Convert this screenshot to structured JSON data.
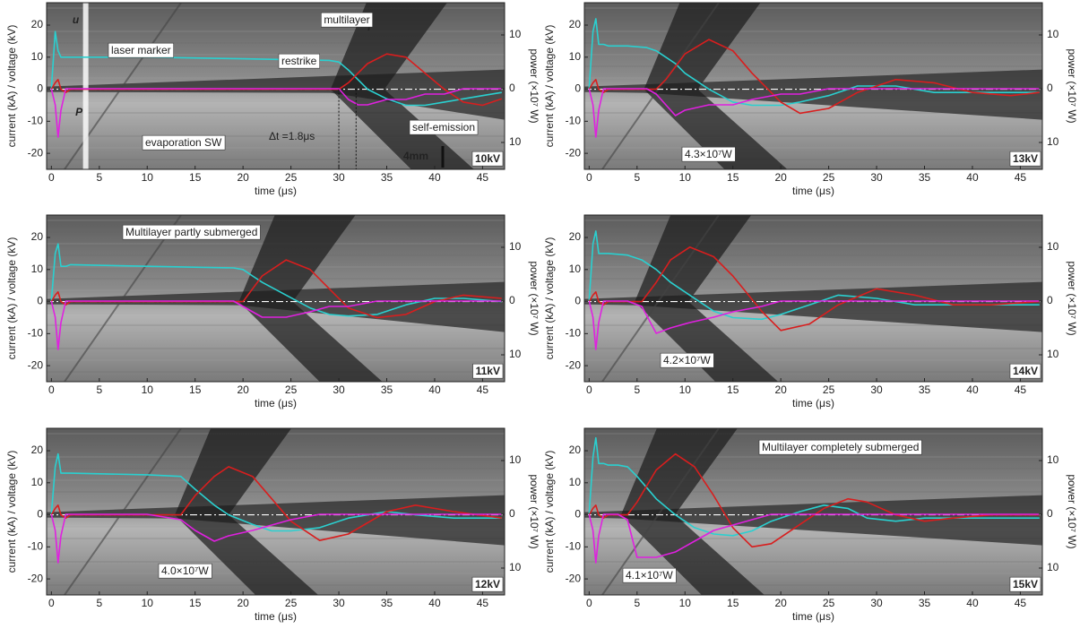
{
  "chart_data": [
    {
      "type": "line",
      "panel_label": "10kV",
      "xlabel": "time (μs)",
      "ylabel": "current (kA) / voltage (kV)",
      "y2label": "power (×10⁷ W)",
      "xlim": [
        -0.5,
        47.3
      ],
      "xticks": [
        0,
        5,
        10,
        15,
        20,
        25,
        30,
        35,
        40,
        45
      ],
      "ylim": [
        -25,
        27
      ],
      "yticks": [
        -20,
        -10,
        0,
        10,
        20
      ],
      "y2lim": [
        -15,
        16
      ],
      "y2ticks": [
        {
          "value": -10,
          "label": "10"
        },
        0,
        10
      ],
      "x": [
        0,
        0.4,
        0.7,
        1,
        1.5,
        2,
        10,
        20,
        29,
        30,
        31,
        32,
        33,
        35,
        37,
        39,
        41,
        43,
        45,
        47
      ],
      "series": [
        {
          "name": "u",
          "color": "#2ad0d0",
          "values": [
            0,
            18,
            12,
            10,
            10,
            10,
            10,
            9.5,
            9,
            8.5,
            6,
            3,
            0,
            -3,
            -5,
            -5,
            -4,
            -3,
            -2,
            -1
          ]
        },
        {
          "name": "I",
          "color": "#d81e1e",
          "values": [
            0,
            2,
            3,
            0,
            -1,
            0,
            0,
            0,
            0,
            0,
            2,
            5,
            8,
            11,
            10,
            5,
            0,
            -4,
            -5,
            -3
          ]
        },
        {
          "name": "P",
          "color": "#e020e0",
          "axis": "y2",
          "values": [
            0,
            -3,
            -9,
            -4,
            0,
            0,
            0,
            0,
            0,
            0,
            -2,
            -3,
            -3,
            -2,
            -2,
            -1,
            -1,
            0,
            0,
            0
          ]
        }
      ],
      "annotations": [
        "multilayer",
        "laser marker",
        "restrike",
        "self-emission",
        "evaporation SW",
        "Δt =1.8μs",
        "4mm"
      ]
    },
    {
      "type": "line",
      "panel_label": "13kV",
      "xlabel": "time (μs)",
      "ylabel": "current (kA) / voltage (kV)",
      "y2label": "power (×10⁷ W)",
      "xlim": [
        -0.5,
        47.3
      ],
      "xticks": [
        0,
        5,
        10,
        15,
        20,
        25,
        30,
        35,
        40,
        45
      ],
      "ylim": [
        -25,
        27
      ],
      "yticks": [
        -20,
        -10,
        0,
        10,
        20
      ],
      "y2lim": [
        -15,
        16
      ],
      "y2ticks": [
        {
          "value": -10,
          "label": "10"
        },
        0,
        10
      ],
      "x": [
        0,
        0.4,
        0.7,
        1,
        1.5,
        2,
        4,
        6,
        7,
        8,
        9,
        10,
        12.5,
        15,
        17,
        20,
        22,
        25,
        28,
        32,
        36,
        40,
        44,
        47
      ],
      "series": [
        {
          "color": "#2ad0d0",
          "values": [
            0,
            18,
            22,
            14,
            14,
            13.5,
            13.5,
            13,
            12,
            10,
            8,
            5,
            0,
            -4,
            -5,
            -5,
            -4,
            -2,
            1,
            1,
            -1,
            -1,
            -1,
            -1
          ]
        },
        {
          "color": "#d81e1e",
          "values": [
            0,
            2,
            3,
            0,
            -1,
            0,
            0,
            0,
            0,
            3,
            7,
            11,
            15.5,
            12,
            5,
            -4,
            -7.5,
            -6,
            -1,
            3,
            2,
            -1,
            -2,
            -1
          ]
        },
        {
          "color": "#e020e0",
          "axis": "y2",
          "values": [
            0,
            -3,
            -9,
            -4,
            0,
            0,
            0,
            0,
            -1,
            -3,
            -5,
            -4,
            -3,
            -3,
            -2,
            -1,
            -1,
            0,
            0,
            0,
            0,
            0,
            0,
            0
          ]
        }
      ],
      "annotations": [
        "4.3×10⁷W"
      ]
    },
    {
      "type": "line",
      "panel_label": "11kV",
      "xlabel": "time (μs)",
      "ylabel": "current (kA) / voltage (kV)",
      "y2label": "power (×10⁷ W)",
      "xlim": [
        -0.5,
        47.3
      ],
      "xticks": [
        0,
        5,
        10,
        15,
        20,
        25,
        30,
        35,
        40,
        45
      ],
      "ylim": [
        -25,
        27
      ],
      "yticks": [
        -20,
        -10,
        0,
        10,
        20
      ],
      "y2lim": [
        -15,
        16
      ],
      "y2ticks": [
        {
          "value": -10,
          "label": "10"
        },
        0,
        10
      ],
      "x": [
        0,
        0.4,
        0.7,
        1,
        1.5,
        2,
        10,
        19,
        20,
        21,
        22,
        24.5,
        27,
        29,
        31,
        34,
        37,
        40,
        43,
        47
      ],
      "series": [
        {
          "color": "#2ad0d0",
          "values": [
            0,
            15,
            18,
            11,
            11,
            11.5,
            11,
            10.5,
            10,
            8,
            6,
            2,
            -2,
            -4,
            -4.5,
            -4,
            -1,
            1,
            1,
            0
          ]
        },
        {
          "color": "#d81e1e",
          "values": [
            0,
            2,
            3,
            0,
            -1,
            0,
            0,
            0,
            0,
            4,
            8,
            13,
            10,
            4,
            -2,
            -5,
            -4,
            0,
            2,
            1
          ]
        },
        {
          "color": "#e020e0",
          "axis": "y2",
          "values": [
            0,
            -3,
            -9,
            -4,
            0,
            0,
            0,
            0,
            -1,
            -2,
            -3,
            -3,
            -2,
            -1,
            -1,
            0,
            0,
            0,
            0,
            0
          ]
        }
      ],
      "annotations": [
        "Multilayer partly submerged"
      ]
    },
    {
      "type": "line",
      "panel_label": "14kV",
      "xlabel": "time (μs)",
      "ylabel": "current (kA) / voltage (kV)",
      "y2label": "power (×10⁷ W)",
      "xlim": [
        -0.5,
        47.3
      ],
      "xticks": [
        0,
        5,
        10,
        15,
        20,
        25,
        30,
        35,
        40,
        45
      ],
      "ylim": [
        -25,
        27
      ],
      "yticks": [
        -20,
        -10,
        0,
        10,
        20
      ],
      "y2lim": [
        -15,
        16
      ],
      "y2ticks": [
        {
          "value": -10,
          "label": "10"
        },
        0,
        10
      ],
      "x": [
        0,
        0.4,
        0.7,
        1,
        1.5,
        2,
        4,
        5.5,
        7,
        8.5,
        10.5,
        13,
        15,
        18,
        20,
        23,
        26,
        30,
        34,
        38,
        42,
        47
      ],
      "series": [
        {
          "color": "#2ad0d0",
          "values": [
            0,
            18,
            22,
            15,
            15,
            15,
            14.5,
            13,
            10,
            6,
            2,
            -3,
            -5,
            -5.5,
            -4,
            -1,
            2,
            1,
            -1,
            -1,
            -1,
            -1
          ]
        },
        {
          "color": "#d81e1e",
          "values": [
            0,
            2,
            3,
            0,
            -1,
            0,
            0,
            0,
            6,
            13,
            17,
            14,
            8,
            -3,
            -9,
            -7,
            -1,
            4,
            2,
            -1,
            -1,
            0
          ]
        },
        {
          "color": "#e020e0",
          "axis": "y2",
          "values": [
            0,
            -3,
            -9,
            -4,
            0,
            0,
            0,
            -1,
            -6,
            -5,
            -4,
            -3,
            -2,
            -1,
            0,
            0,
            0,
            0,
            0,
            0,
            0,
            0
          ]
        }
      ],
      "annotations": [
        "4.2×10⁷W"
      ]
    },
    {
      "type": "line",
      "panel_label": "12kV",
      "xlabel": "time (μs)",
      "ylabel": "current (kA) / voltage (kV)",
      "y2label": "power (×10⁷ W)",
      "xlim": [
        -0.5,
        47.3
      ],
      "xticks": [
        0,
        5,
        10,
        15,
        20,
        25,
        30,
        35,
        40,
        45
      ],
      "ylim": [
        -25,
        27
      ],
      "yticks": [
        -20,
        -10,
        0,
        10,
        20
      ],
      "y2lim": [
        -15,
        16
      ],
      "y2ticks": [
        {
          "value": -10,
          "label": "10"
        },
        0,
        10
      ],
      "x": [
        0,
        0.4,
        0.7,
        1,
        1.5,
        2,
        10,
        13.5,
        15,
        17,
        18.5,
        21,
        23,
        25,
        28,
        31,
        35,
        38,
        42,
        47
      ],
      "series": [
        {
          "color": "#2ad0d0",
          "values": [
            0,
            15,
            19,
            13,
            13,
            13,
            12.5,
            12,
            8,
            3,
            0,
            -3,
            -5,
            -5,
            -4,
            -1,
            1,
            0,
            -1,
            -1
          ]
        },
        {
          "color": "#d81e1e",
          "values": [
            0,
            2,
            3,
            0,
            -1,
            0,
            0,
            0,
            6,
            12,
            15,
            12,
            5,
            -2,
            -8,
            -6,
            1,
            3,
            1,
            -1
          ]
        },
        {
          "color": "#e020e0",
          "axis": "y2",
          "values": [
            0,
            -3,
            -9,
            -4,
            0,
            0,
            0,
            -1,
            -3,
            -5,
            -4,
            -3,
            -2,
            -1,
            0,
            0,
            0,
            0,
            0,
            0
          ]
        }
      ],
      "annotations": [
        "4.0×10⁷W"
      ]
    },
    {
      "type": "line",
      "panel_label": "15kV",
      "xlabel": "time (μs)",
      "ylabel": "current (kA) / voltage (kV)",
      "y2label": "power (×10⁷ W)",
      "xlim": [
        -0.5,
        47.3
      ],
      "xticks": [
        0,
        5,
        10,
        15,
        20,
        25,
        30,
        35,
        40,
        45
      ],
      "ylim": [
        -25,
        27
      ],
      "yticks": [
        -20,
        -10,
        0,
        10,
        20
      ],
      "y2lim": [
        -15,
        16
      ],
      "y2ticks": [
        {
          "value": -10,
          "label": "10"
        },
        0,
        10
      ],
      "x": [
        0,
        0.4,
        0.7,
        1,
        1.5,
        2,
        3,
        4,
        5,
        7,
        9,
        11,
        13,
        15,
        17,
        19,
        22,
        24.5,
        27,
        29,
        32,
        35,
        38,
        42,
        47
      ],
      "series": [
        {
          "color": "#2ad0d0",
          "values": [
            0,
            18,
            24,
            16,
            16,
            15.5,
            15.5,
            15,
            12,
            5,
            0,
            -4,
            -6,
            -6.5,
            -5,
            -2,
            1,
            3,
            2,
            -1,
            -2,
            -1,
            -1,
            -1,
            -1
          ]
        },
        {
          "color": "#d81e1e",
          "values": [
            0,
            2,
            3,
            0,
            -1,
            0,
            0,
            0,
            4,
            14,
            19,
            15,
            6,
            -4,
            -10,
            -9,
            -3,
            2,
            5,
            4,
            0,
            -2,
            -1,
            0,
            0
          ]
        },
        {
          "color": "#e020e0",
          "axis": "y2",
          "values": [
            0,
            -3,
            -9,
            -4,
            0,
            0,
            0,
            -1,
            -8,
            -8,
            -7,
            -5,
            -3,
            -2,
            -1,
            0,
            0,
            0,
            0,
            0,
            0,
            0,
            0,
            0,
            0
          ]
        }
      ],
      "annotations": [
        "Multilayer completely submerged",
        "4.1×10⁷W"
      ]
    }
  ]
}
